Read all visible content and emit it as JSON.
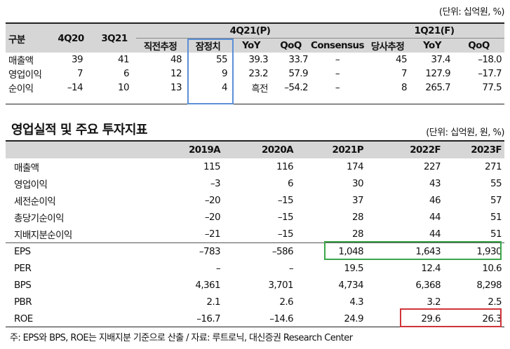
{
  "table1": {
    "unit": "(단위: 십억원, %)",
    "group_4q21": "4Q21(P)",
    "group_1q21": "1Q21(F)",
    "col_label": "구분",
    "col_4q20": "4Q20",
    "col_3q21": "3Q21",
    "sub_headers": [
      "직전추정",
      "잠정치",
      "YoY",
      "QoQ",
      "Consensus",
      "당사추정",
      "YoY",
      "QoQ"
    ],
    "rows": [
      {
        "label": "매출액",
        "cells": [
          "39",
          "41",
          "48",
          "55",
          "39.3",
          "33.7",
          "–",
          "45",
          "37.4",
          "–18.0"
        ]
      },
      {
        "label": "영업이익",
        "cells": [
          "7",
          "6",
          "12",
          "9",
          "23.2",
          "57.9",
          "–",
          "7",
          "127.9",
          "–17.7"
        ]
      },
      {
        "label": "순이익",
        "cells": [
          "–14",
          "10",
          "13",
          "4",
          "흑전",
          "–54.2",
          "–",
          "8",
          "265.7",
          "77.5"
        ]
      }
    ]
  },
  "table2": {
    "title": "영업실적 및 주요 투자지표",
    "unit": "(단위: 십억원, 원, %)",
    "years": [
      "2019A",
      "2020A",
      "2021P",
      "2022F",
      "2023F"
    ],
    "rows_a": [
      {
        "label": "매출액",
        "cells": [
          "115",
          "116",
          "174",
          "227",
          "271"
        ]
      },
      {
        "label": "영업이익",
        "cells": [
          "–3",
          "6",
          "30",
          "43",
          "55"
        ]
      },
      {
        "label": "세전순이익",
        "cells": [
          "–20",
          "–15",
          "37",
          "46",
          "57"
        ]
      },
      {
        "label": "총당기순이익",
        "cells": [
          "–20",
          "–15",
          "28",
          "44",
          "51"
        ]
      },
      {
        "label": "지배지분순이익",
        "cells": [
          "–21",
          "–15",
          "28",
          "44",
          "51"
        ]
      }
    ],
    "rows_b": [
      {
        "label": "EPS",
        "cells": [
          "–783",
          "–586",
          "1,048",
          "1,643",
          "1,930"
        ]
      },
      {
        "label": "PER",
        "cells": [
          "–",
          "–",
          "19.5",
          "12.4",
          "10.6"
        ]
      },
      {
        "label": "BPS",
        "cells": [
          "4,361",
          "3,701",
          "4,734",
          "6,368",
          "8,298"
        ]
      },
      {
        "label": "PBR",
        "cells": [
          "2.1",
          "2.6",
          "4.3",
          "3.2",
          "2.5"
        ]
      },
      {
        "label": "ROE",
        "cells": [
          "–16.7",
          "–14.6",
          "24.9",
          "29.6",
          "26.3"
        ]
      }
    ]
  },
  "footnote": "주: EPS와 BPS, ROE는 지배지분 기준으로 산출 / 자료: 루트로닉, 대신증권 Research Center",
  "colors": {
    "blue_box": "#5b8fd6",
    "green_box": "#3aa64a",
    "red_box": "#d0343a",
    "header_bg": "#d6d6d6"
  }
}
